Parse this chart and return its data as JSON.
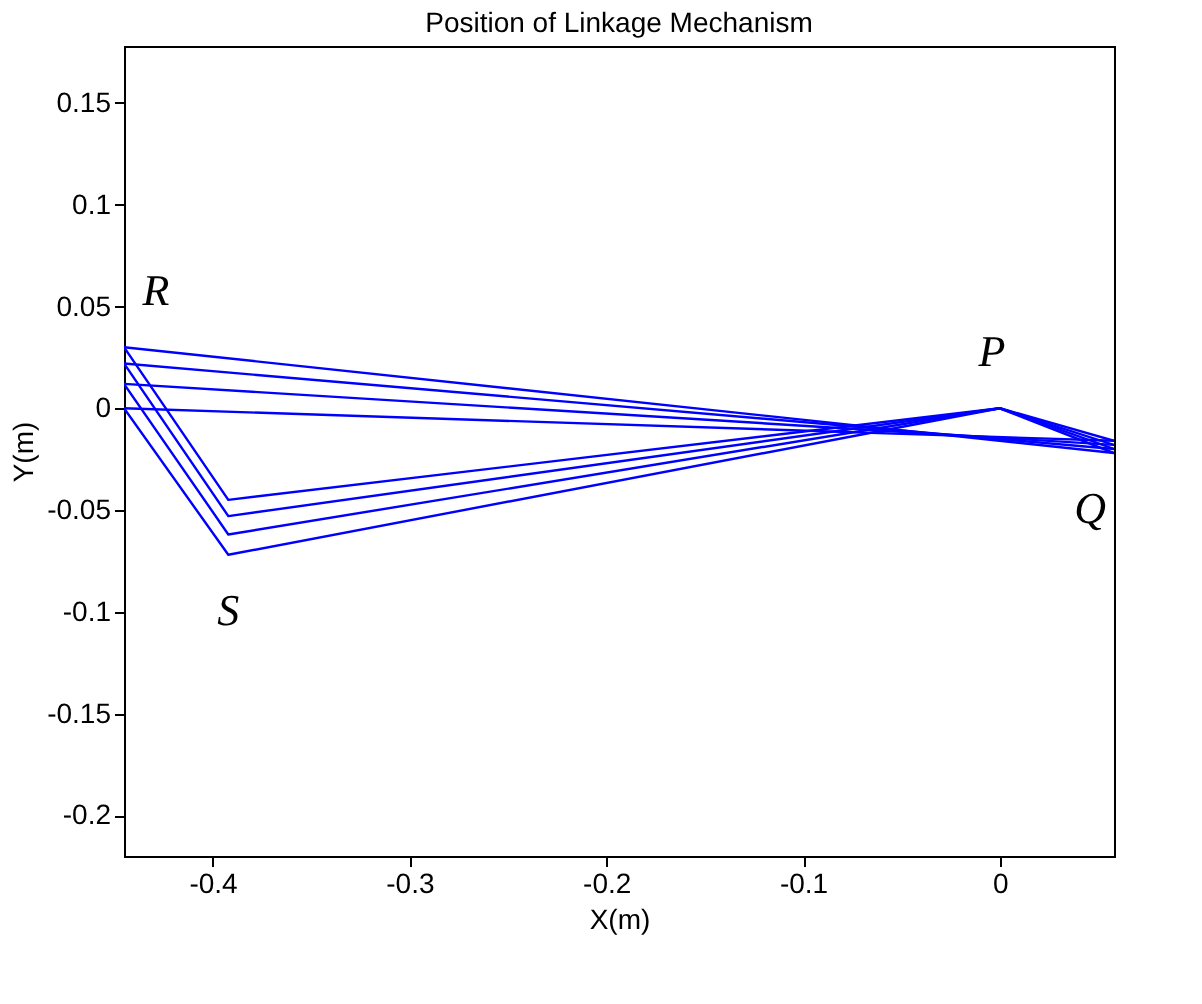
{
  "chart_data": {
    "type": "line",
    "title": "Position of Linkage Mechanism",
    "xlabel": "X(m)",
    "ylabel": "Y(m)",
    "series": [
      {
        "color": "#0000ff",
        "x": [
          -0.445,
          -0.392,
          0,
          0.058
        ],
        "values": [
          0.03,
          -0.045,
          0,
          -0.022
        ]
      },
      {
        "color": "#0000ff",
        "x": [
          -0.445,
          -0.392,
          0,
          0.058
        ],
        "values": [
          0.022,
          -0.053,
          0,
          -0.02
        ]
      },
      {
        "color": "#0000ff",
        "x": [
          -0.445,
          -0.392,
          0,
          0.058
        ],
        "values": [
          0.012,
          -0.062,
          0,
          -0.018
        ]
      },
      {
        "color": "#0000ff",
        "x": [
          -0.445,
          -0.392,
          0,
          0.058
        ],
        "values": [
          0.0,
          -0.072,
          0,
          -0.016
        ]
      },
      {
        "color": "#0000ff",
        "x": [
          -0.445,
          0.058
        ],
        "values": [
          0.03,
          -0.022
        ]
      },
      {
        "color": "#0000ff",
        "x": [
          -0.445,
          0.058
        ],
        "values": [
          0.022,
          -0.02
        ]
      },
      {
        "color": "#0000ff",
        "x": [
          -0.445,
          0.058
        ],
        "values": [
          0.012,
          -0.018
        ]
      },
      {
        "color": "#0000ff",
        "x": [
          -0.445,
          0.058
        ],
        "values": [
          0.0,
          -0.016
        ]
      }
    ],
    "xlim": [
      -0.445,
      0.058
    ],
    "ylim": [
      -0.22,
      0.178
    ],
    "xticks": [
      -0.4,
      -0.3,
      -0.2,
      -0.1,
      0
    ],
    "yticks": [
      -0.2,
      -0.15,
      -0.1,
      -0.05,
      0,
      0.05,
      0.1,
      0.15
    ],
    "grid": false,
    "legend": false,
    "marker": "none",
    "line_style": "solid",
    "annotations": [
      "R",
      "S",
      "P",
      "Q"
    ]
  }
}
